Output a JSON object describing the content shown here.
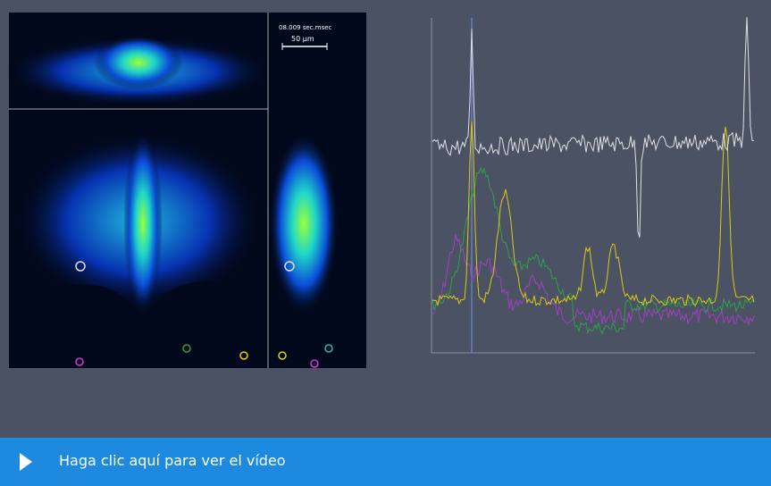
{
  "video": {
    "timestamp": "08.009 sec.msec",
    "scale_bar": "50 µm"
  },
  "play_bar": {
    "label": "Haga clic aquí para ver el vídeo"
  }
}
